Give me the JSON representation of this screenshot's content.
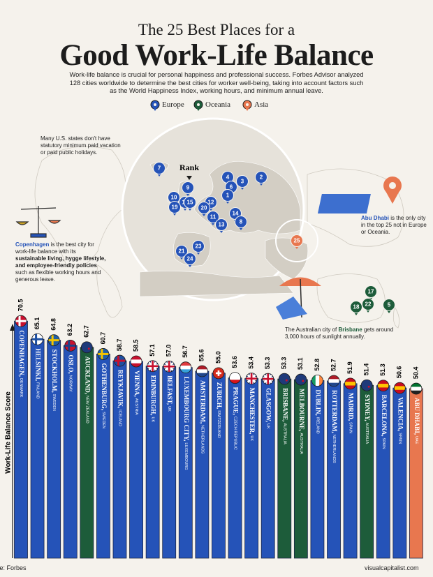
{
  "chart_data": {
    "type": "bar",
    "kicker": "The 25 Best Places for a",
    "title": "Good Work-Life Balance",
    "description": "Work-life balance is crucial for personal happiness and professional success. Forbes Advisor analyzed 128 cities worldwide to determine the best cities for worker well-being, taking into account factors such as the World Happiness Index, working hours, and minimum annual leave.",
    "legend": [
      {
        "name": "Europe",
        "color": "#2553b8"
      },
      {
        "name": "Oceania",
        "color": "#1d5c3a"
      },
      {
        "name": "Asia",
        "color": "#e8774f"
      }
    ],
    "categories": [
      "COPENHAGEN,",
      "HELSINKI,",
      "STOCKHOLM,",
      "OSLO,",
      "AUCKLAND,",
      "GOTHENBURG,",
      "REYKJAVIK,",
      "VIENNA,",
      "EDINBURGH,",
      "BELFAST,",
      "LUXEMBOURG CITY,",
      "AMSTERDAM,",
      "ZURICH,",
      "PRAGUE,",
      "MANCHESTER,",
      "GLASGOW,",
      "BRISBANE,",
      "MELBOURNE,",
      "DUBLIN,",
      "ROTTERDAM,",
      "MADRID,",
      "SYDNEY,",
      "BARCELONA,",
      "VALENCIA,",
      "ABU DHABI,"
    ],
    "countries": [
      "DENMARK",
      "FINLAND",
      "SWEDEN",
      "NORWAY",
      "NEW ZEALAND",
      "SWEDEN",
      "ICELAND",
      "AUSTRIA",
      "UK",
      "UK",
      "LUXEMBOURG",
      "NETHERLANDS",
      "SWITZERLAND",
      "CZECH REPUBLIC",
      "UK",
      "UK",
      "AUSTRALIA",
      "AUSTRALIA",
      "IRELAND",
      "NETHERLANDS",
      "SPAIN",
      "AUSTRALIA",
      "SPAIN",
      "SPAIN",
      "UAE"
    ],
    "values": [
      70.5,
      65.1,
      64.8,
      63.2,
      62.7,
      60.7,
      58.7,
      58.5,
      57.1,
      57.0,
      56.7,
      55.6,
      55.0,
      53.6,
      53.4,
      53.3,
      53.3,
      53.1,
      52.8,
      52.7,
      51.9,
      51.4,
      51.3,
      50.6,
      50.4
    ],
    "value_labels": [
      "70.5",
      "65.1",
      "64.8",
      "63.2",
      "62.7",
      "60.7",
      "58.7",
      "58.5",
      "57.1",
      "57.0",
      "56.7",
      "55.6",
      "55.0",
      "53.6",
      "53.4",
      "53.3",
      "53.3",
      "53.1",
      "52.8",
      "52.7",
      "51.9",
      "51.4",
      "51.3",
      "50.6",
      "50.4"
    ],
    "colors": [
      "#2553b8",
      "#2553b8",
      "#2553b8",
      "#2553b8",
      "#1d5c3a",
      "#2553b8",
      "#2553b8",
      "#2553b8",
      "#2553b8",
      "#2553b8",
      "#2553b8",
      "#2553b8",
      "#2553b8",
      "#2553b8",
      "#2553b8",
      "#2553b8",
      "#1d5c3a",
      "#1d5c3a",
      "#2553b8",
      "#2553b8",
      "#2553b8",
      "#1d5c3a",
      "#2553b8",
      "#2553b8",
      "#e8774f"
    ],
    "ylabel": "Work-Life Balance Score",
    "map": {
      "rank_label": "Rank",
      "pins": [
        {
          "label": "7",
          "color": "#2553b8"
        },
        {
          "label": "9",
          "color": "#2553b8"
        },
        {
          "label": "4",
          "color": "#2553b8"
        },
        {
          "label": "6",
          "color": "#2553b8"
        },
        {
          "label": "3",
          "color": "#2553b8"
        },
        {
          "label": "2",
          "color": "#2553b8"
        },
        {
          "label": "1",
          "color": "#2553b8"
        },
        {
          "label": "12",
          "color": "#2553b8"
        },
        {
          "label": "20",
          "color": "#2553b8"
        },
        {
          "label": "10",
          "color": "#2553b8"
        },
        {
          "label": "16",
          "color": "#2553b8"
        },
        {
          "label": "15",
          "color": "#2553b8"
        },
        {
          "label": "19",
          "color": "#2553b8"
        },
        {
          "label": "11",
          "color": "#2553b8"
        },
        {
          "label": "13",
          "color": "#2553b8"
        },
        {
          "label": "14",
          "color": "#2553b8"
        },
        {
          "label": "8",
          "color": "#2553b8"
        },
        {
          "label": "21",
          "color": "#2553b8"
        },
        {
          "label": "23",
          "color": "#2553b8"
        },
        {
          "label": "24",
          "color": "#2553b8"
        },
        {
          "label": "25",
          "color": "#e8774f"
        },
        {
          "label": "17",
          "color": "#1d5c3a"
        },
        {
          "label": "18",
          "color": "#1d5c3a"
        },
        {
          "label": "22",
          "color": "#1d5c3a"
        },
        {
          "label": "5",
          "color": "#1d5c3a"
        }
      ]
    },
    "annotations": {
      "us_note": "Many U.S. states don't have statutory minimum paid vacation or paid public holidays.",
      "copenhagen": [
        "Copenhagen",
        " is the best city for work-life balance with its ",
        "sustainable living, hygge lifestyle, and employee-friendly policies",
        " such as flexible working hours and generous leave."
      ],
      "abu_dhabi": [
        "Abu Dhabi",
        " is the only city in the top 25 not in Europe or Oceania."
      ],
      "brisbane": [
        "The Australian city of ",
        "Brisbane",
        " gets around 3,000 hours of sunlight annually."
      ]
    },
    "source": "Source: Forbes",
    "footer": "visualcapitalist.com"
  }
}
